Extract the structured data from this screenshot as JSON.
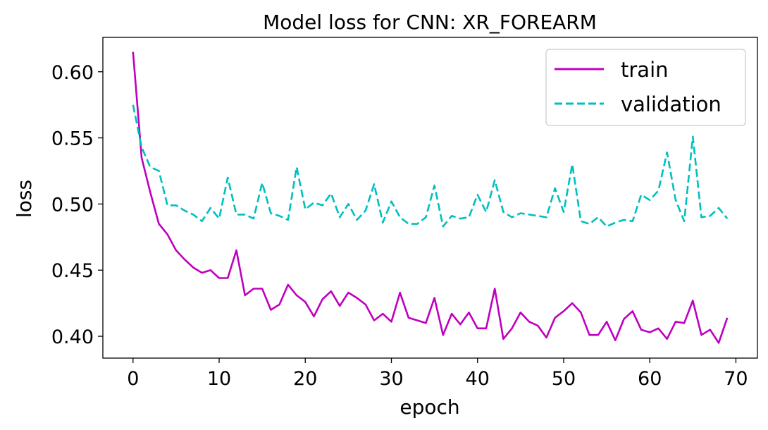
{
  "chart_data": {
    "type": "line",
    "title": "Model loss for CNN: XR_FOREARM",
    "xlabel": "epoch",
    "ylabel": "loss",
    "xlim": [
      -3.5,
      72.5
    ],
    "ylim": [
      0.3835,
      0.626
    ],
    "xticks": [
      0,
      10,
      20,
      30,
      40,
      50,
      60,
      70
    ],
    "yticks": [
      0.4,
      0.45,
      0.5,
      0.55,
      0.6
    ],
    "xtick_labels": [
      "0",
      "10",
      "20",
      "30",
      "40",
      "50",
      "60",
      "70"
    ],
    "ytick_labels": [
      "0.40",
      "0.45",
      "0.50",
      "0.55",
      "0.60"
    ],
    "grid": false,
    "legend_position": "top-right",
    "series": [
      {
        "name": "train",
        "color": "#bf00bf",
        "style": "solid",
        "x": [
          0,
          1,
          2,
          3,
          4,
          5,
          6,
          7,
          8,
          9,
          10,
          11,
          12,
          13,
          14,
          15,
          16,
          17,
          18,
          19,
          20,
          21,
          22,
          23,
          24,
          25,
          26,
          27,
          28,
          29,
          30,
          31,
          32,
          33,
          34,
          35,
          36,
          37,
          38,
          39,
          40,
          41,
          42,
          43,
          44,
          45,
          46,
          47,
          48,
          49,
          50,
          51,
          52,
          53,
          54,
          55,
          56,
          57,
          58,
          59,
          60,
          61,
          62,
          63,
          64,
          65,
          66,
          67,
          68,
          69
        ],
        "values": [
          0.615,
          0.535,
          0.509,
          0.485,
          0.477,
          0.465,
          0.458,
          0.452,
          0.448,
          0.45,
          0.444,
          0.444,
          0.465,
          0.431,
          0.436,
          0.436,
          0.42,
          0.424,
          0.439,
          0.431,
          0.426,
          0.415,
          0.428,
          0.434,
          0.423,
          0.433,
          0.429,
          0.424,
          0.412,
          0.417,
          0.411,
          0.433,
          0.414,
          0.412,
          0.41,
          0.429,
          0.401,
          0.417,
          0.409,
          0.418,
          0.406,
          0.406,
          0.436,
          0.398,
          0.406,
          0.418,
          0.411,
          0.408,
          0.399,
          0.414,
          0.419,
          0.425,
          0.418,
          0.401,
          0.401,
          0.411,
          0.397,
          0.413,
          0.419,
          0.405,
          0.403,
          0.406,
          0.398,
          0.411,
          0.41,
          0.427,
          0.401,
          0.405,
          0.395,
          0.414
        ]
      },
      {
        "name": "validation",
        "color": "#00bfbf",
        "style": "dashed",
        "x": [
          0,
          1,
          2,
          3,
          4,
          5,
          6,
          7,
          8,
          9,
          10,
          11,
          12,
          13,
          14,
          15,
          16,
          17,
          18,
          19,
          20,
          21,
          22,
          23,
          24,
          25,
          26,
          27,
          28,
          29,
          30,
          31,
          32,
          33,
          34,
          35,
          36,
          37,
          38,
          39,
          40,
          41,
          42,
          43,
          44,
          45,
          46,
          47,
          48,
          49,
          50,
          51,
          52,
          53,
          54,
          55,
          56,
          57,
          58,
          59,
          60,
          61,
          62,
          63,
          64,
          65,
          66,
          67,
          68,
          69
        ],
        "values": [
          0.575,
          0.543,
          0.528,
          0.525,
          0.499,
          0.499,
          0.495,
          0.492,
          0.487,
          0.497,
          0.489,
          0.52,
          0.492,
          0.492,
          0.489,
          0.516,
          0.493,
          0.491,
          0.488,
          0.528,
          0.496,
          0.501,
          0.499,
          0.508,
          0.49,
          0.5,
          0.488,
          0.495,
          0.515,
          0.486,
          0.502,
          0.49,
          0.485,
          0.485,
          0.49,
          0.514,
          0.483,
          0.491,
          0.489,
          0.49,
          0.507,
          0.494,
          0.518,
          0.494,
          0.49,
          0.493,
          0.492,
          0.491,
          0.49,
          0.512,
          0.494,
          0.53,
          0.487,
          0.485,
          0.49,
          0.483,
          0.486,
          0.488,
          0.487,
          0.507,
          0.503,
          0.51,
          0.539,
          0.503,
          0.487,
          0.551,
          0.49,
          0.491,
          0.497,
          0.489
        ]
      }
    ]
  }
}
